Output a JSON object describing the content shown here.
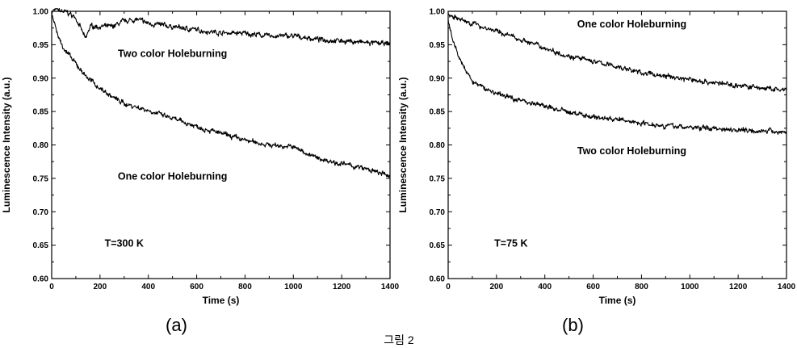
{
  "figure": {
    "caption": "그림 2"
  },
  "chart_data": [
    {
      "type": "line",
      "panel_label": "(a)",
      "xlabel": "Time (s)",
      "ylabel": "Luminescence Intensity (a.u.)",
      "xlim": [
        0,
        1400
      ],
      "ylim": [
        0.6,
        1.0
      ],
      "x_ticks": [
        "0",
        "200",
        "400",
        "600",
        "800",
        "1000",
        "1200",
        "1400"
      ],
      "y_ticks": [
        "0.60",
        "0.65",
        "0.70",
        "0.75",
        "0.80",
        "0.85",
        "0.90",
        "0.95",
        "1.00"
      ],
      "annotations": [
        {
          "text": "Two color Holeburning",
          "x": 500,
          "y": 0.932
        },
        {
          "text": "One color Holeburning",
          "x": 500,
          "y": 0.748
        },
        {
          "text": "T=300 K",
          "x": 300,
          "y": 0.648
        }
      ],
      "series": [
        {
          "x": [
            0,
            20,
            40,
            60,
            80,
            100,
            120,
            140,
            160,
            200,
            250,
            300,
            350,
            400,
            500,
            600,
            700,
            800,
            900,
            1000,
            1100,
            1200,
            1300,
            1400
          ],
          "values": [
            1.0,
            1.003,
            1.0,
            0.999,
            0.995,
            0.99,
            0.975,
            0.958,
            0.978,
            0.977,
            0.977,
            0.985,
            0.988,
            0.982,
            0.977,
            0.972,
            0.968,
            0.967,
            0.963,
            0.963,
            0.958,
            0.956,
            0.953,
            0.951
          ]
        },
        {
          "x": [
            0,
            10,
            20,
            40,
            60,
            80,
            100,
            150,
            200,
            250,
            300,
            400,
            500,
            600,
            700,
            800,
            900,
            1000,
            1100,
            1200,
            1300,
            1400
          ],
          "values": [
            0.995,
            0.985,
            0.97,
            0.951,
            0.94,
            0.93,
            0.921,
            0.9,
            0.885,
            0.872,
            0.862,
            0.852,
            0.839,
            0.828,
            0.817,
            0.807,
            0.8,
            0.797,
            0.78,
            0.772,
            0.764,
            0.753
          ]
        }
      ]
    },
    {
      "type": "line",
      "panel_label": "(b)",
      "xlabel": "Time (s)",
      "ylabel": "Luminescence Intensity (a.u.)",
      "xlim": [
        0,
        1400
      ],
      "ylim": [
        0.6,
        1.0
      ],
      "x_ticks": [
        "0",
        "200",
        "400",
        "600",
        "800",
        "1000",
        "1200",
        "1400"
      ],
      "y_ticks": [
        "0.60",
        "0.65",
        "0.70",
        "0.75",
        "0.80",
        "0.85",
        "0.90",
        "0.95",
        "1.00"
      ],
      "annotations": [
        {
          "text": "One color Holeburning",
          "x": 760,
          "y": 0.976
        },
        {
          "text": "Two color Holeburning",
          "x": 760,
          "y": 0.786
        },
        {
          "text": "T=75 K",
          "x": 260,
          "y": 0.648
        }
      ],
      "series": [
        {
          "x": [
            0,
            20,
            50,
            100,
            200,
            300,
            400,
            500,
            600,
            700,
            800,
            900,
            1000,
            1100,
            1200,
            1300,
            1400
          ],
          "values": [
            0.995,
            0.993,
            0.987,
            0.982,
            0.97,
            0.958,
            0.945,
            0.933,
            0.925,
            0.917,
            0.908,
            0.903,
            0.898,
            0.893,
            0.889,
            0.885,
            0.881
          ]
        },
        {
          "x": [
            0,
            10,
            20,
            40,
            60,
            80,
            100,
            150,
            200,
            300,
            400,
            500,
            600,
            700,
            800,
            900,
            1000,
            1100,
            1200,
            1300,
            1400
          ],
          "values": [
            0.985,
            0.97,
            0.955,
            0.935,
            0.92,
            0.906,
            0.895,
            0.885,
            0.877,
            0.867,
            0.858,
            0.849,
            0.842,
            0.838,
            0.833,
            0.829,
            0.826,
            0.825,
            0.823,
            0.821,
            0.819
          ]
        }
      ]
    }
  ]
}
